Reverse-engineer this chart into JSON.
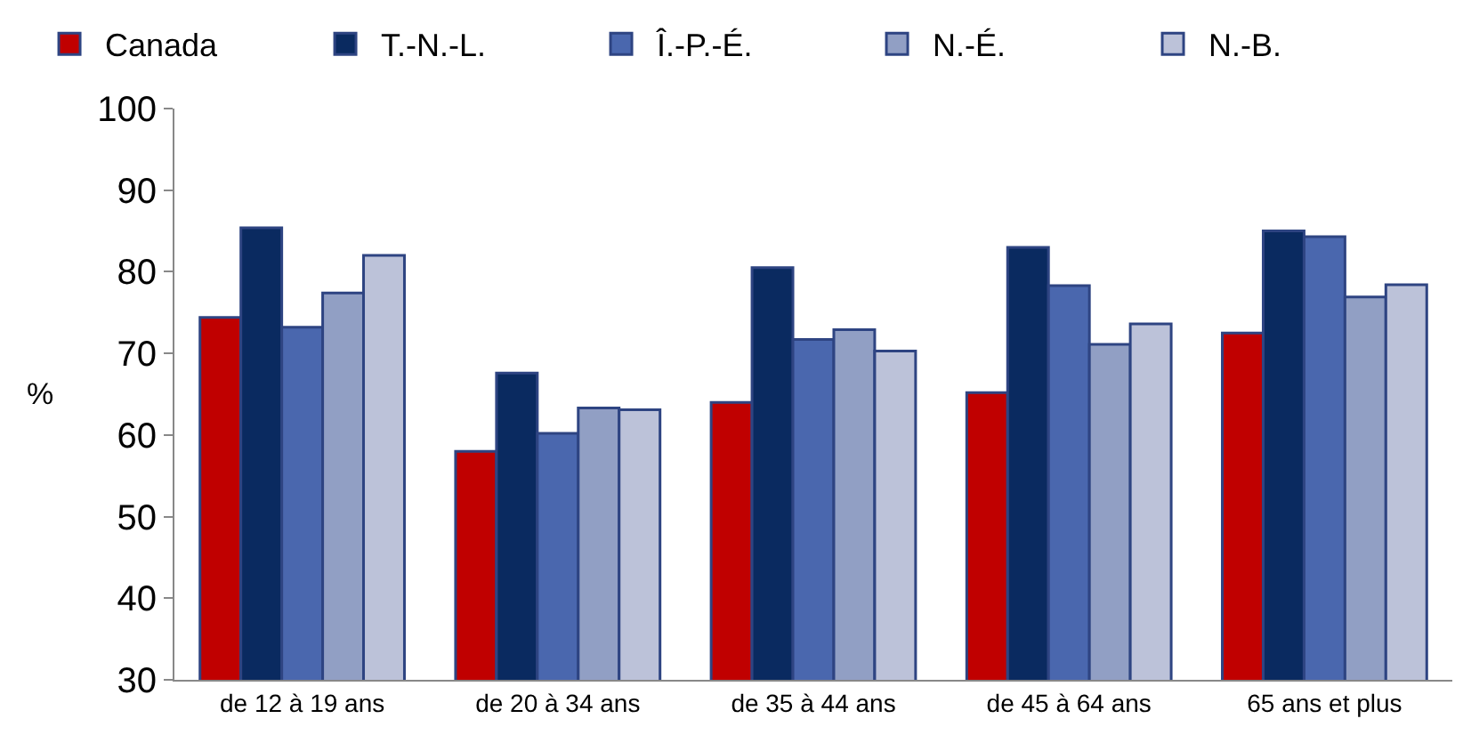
{
  "chart_data": {
    "type": "bar",
    "ylabel": "%",
    "categories": [
      "de 12 à 19 ans",
      "de 20 à 34 ans",
      "de 35 à 44 ans",
      "de 45 à 64 ans",
      "65 ans et plus"
    ],
    "series": [
      {
        "name": "Canada",
        "color": "#c00000",
        "values": [
          74.4,
          58.0,
          64.0,
          65.2,
          72.5
        ]
      },
      {
        "name": "T.-N.-L.",
        "color": "#0a2a60",
        "values": [
          85.4,
          67.6,
          80.5,
          83.0,
          85.0
        ]
      },
      {
        "name": "Î.-P.-É.",
        "color": "#4a67ae",
        "values": [
          73.2,
          60.2,
          71.7,
          78.3,
          84.3
        ]
      },
      {
        "name": "N.-É.",
        "color": "#919fc4",
        "values": [
          77.4,
          63.3,
          72.9,
          71.1,
          76.9
        ]
      },
      {
        "name": "N.-B.",
        "color": "#bcc2d9",
        "values": [
          82.0,
          63.1,
          70.3,
          73.6,
          78.4
        ]
      }
    ],
    "ylim": [
      30,
      100
    ],
    "yticks": [
      30,
      40,
      50,
      60,
      70,
      80,
      90,
      100
    ],
    "legend": "top"
  }
}
